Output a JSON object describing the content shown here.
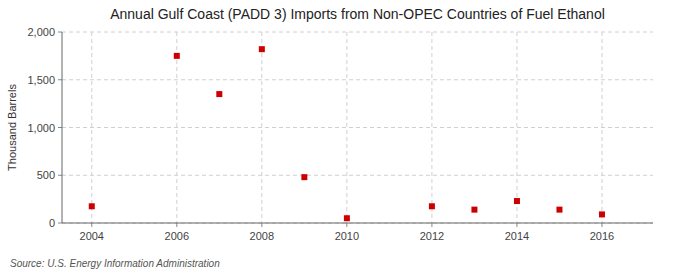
{
  "chart_data": {
    "type": "scatter",
    "title": "Annual Gulf Coast (PADD 3) Imports from Non-OPEC Countries of Fuel Ethanol",
    "ylabel": "Thousand Barrels",
    "source": "Source: U.S. Energy Information Administration",
    "x": [
      2004,
      2006,
      2007,
      2008,
      2009,
      2010,
      2012,
      2013,
      2014,
      2015,
      2016
    ],
    "values": [
      175,
      1750,
      1350,
      1820,
      480,
      50,
      175,
      140,
      230,
      140,
      90
    ],
    "xlim": [
      2003.3,
      2017.2
    ],
    "ylim": [
      0,
      2000
    ],
    "xticks": [
      2004,
      2006,
      2008,
      2010,
      2012,
      2014,
      2016
    ],
    "yticks": [
      0,
      500,
      {
        "value": 1000,
        "label": "1,000"
      },
      {
        "value": 1500,
        "label": "1,500"
      },
      {
        "value": 2000,
        "label": "2,000"
      }
    ],
    "color": "#cc0000",
    "marker": "square",
    "grid": true
  }
}
